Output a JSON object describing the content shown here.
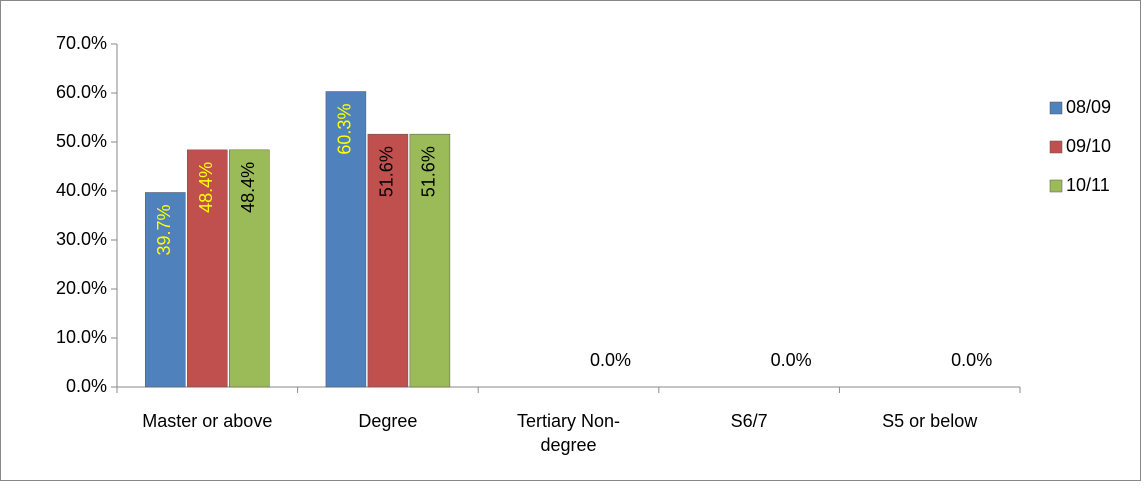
{
  "chart_data": {
    "type": "bar",
    "categories": [
      "Master or above",
      "Degree",
      "Tertiary Non-degree",
      "S6/7",
      "S5 or below"
    ],
    "series": [
      {
        "name": "08/09",
        "color": "#4f81bd",
        "values": [
          39.7,
          60.3,
          null,
          null,
          null
        ],
        "value_labels": [
          "39.7%",
          "60.3%",
          null,
          null,
          null
        ],
        "label_colors": [
          "#ffff00",
          "#ffff00",
          null,
          null,
          null
        ]
      },
      {
        "name": "09/10",
        "color": "#c0504d",
        "values": [
          48.4,
          51.6,
          null,
          null,
          null
        ],
        "value_labels": [
          "48.4%",
          "51.6%",
          null,
          null,
          null
        ],
        "label_colors": [
          "#ffff00",
          "#000000",
          null,
          null,
          null
        ]
      },
      {
        "name": "10/11",
        "color": "#9bbb59",
        "values": [
          48.4,
          51.6,
          0,
          0,
          0
        ],
        "value_labels": [
          "48.4%",
          "51.6%",
          "0.0%",
          "0.0%",
          "0.0%"
        ],
        "label_colors": [
          "#000000",
          "#000000",
          "#000000",
          "#000000",
          "#000000"
        ]
      }
    ],
    "ylim": [
      0,
      70
    ],
    "yticks": [
      {
        "value": 0,
        "label": "0.0%"
      },
      {
        "value": 10,
        "label": "10.0%"
      },
      {
        "value": 20,
        "label": "20.0%"
      },
      {
        "value": 30,
        "label": "30.0%"
      },
      {
        "value": 40,
        "label": "40.0%"
      },
      {
        "value": 50,
        "label": "50.0%"
      },
      {
        "value": 60,
        "label": "60.0%"
      },
      {
        "value": 70,
        "label": "70.0%"
      }
    ],
    "legend": "right",
    "grid": false
  }
}
